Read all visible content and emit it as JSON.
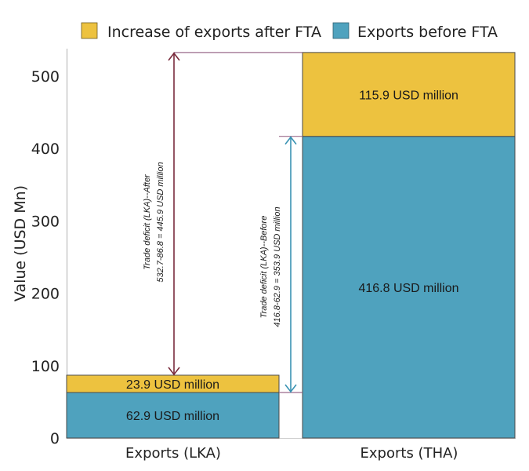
{
  "chart_data": {
    "type": "bar",
    "stacked": true,
    "title": "",
    "xlabel": "",
    "ylabel": "Value (USD Mn)",
    "ylim": [
      0,
      532.7
    ],
    "yticks": [
      0,
      100,
      200,
      300,
      400,
      500
    ],
    "grid": false,
    "legend_position": "top",
    "categories": [
      "Exports (LKA)",
      "Exports (THA)"
    ],
    "series": [
      {
        "name": "Exports before FTA",
        "color": "#4FA2BE",
        "values": [
          62.9,
          416.8
        ],
        "labels": [
          "62.9 USD million",
          "416.8 USD million"
        ]
      },
      {
        "name": "Increase of exports after FTA",
        "color": "#EDC23F",
        "values": [
          23.9,
          115.9
        ],
        "labels": [
          "23.9 USD million",
          "115.9 USD million"
        ]
      }
    ],
    "legend": [
      {
        "name": "Increase of exports after FTA",
        "color": "#EDC23F"
      },
      {
        "name": "Exports before FTA",
        "color": "#4FA2BE"
      }
    ],
    "annotations": [
      {
        "name": "trade-deficit-after",
        "from": 86.8,
        "to": 532.7,
        "color": "#7A2C3D",
        "lines": [
          "Trade deficit (LKA)--After",
          "532.7-86.8 = 445.9 USD million"
        ]
      },
      {
        "name": "trade-deficit-before",
        "from": 62.9,
        "to": 416.8,
        "color": "#3A93B3",
        "lines": [
          "Trade deficit (LKA)--Before",
          "416.8-62.9 = 353.9 USD million"
        ]
      }
    ]
  }
}
